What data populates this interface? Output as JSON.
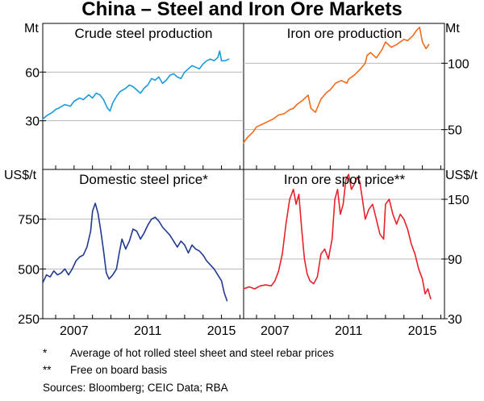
{
  "title": "China – Steel and Iron Ore Markets",
  "footnotes": {
    "note1_marker": "*",
    "note1_text": "Average of hot rolled steel sheet and steel rebar prices",
    "note2_marker": "**",
    "note2_text": "Free on board basis",
    "sources": "Sources:  Bloomberg; CEIC Data; RBA"
  },
  "units": {
    "top_left": "Mt",
    "top_right": "Mt",
    "bottom_left": "US$/t",
    "bottom_right": "US$/t"
  },
  "colors": {
    "crude_steel": "#1a9cd8",
    "iron_ore_production": "#f26a1b",
    "domestic_steel_price": "#203a8f",
    "iron_ore_spot": "#e8222b"
  },
  "chart_data": [
    {
      "type": "line",
      "title": "Crude steel production",
      "ylabel": "Mt",
      "yticks": [
        30,
        60
      ],
      "ylim": [
        0,
        90
      ],
      "xlim": [
        2005.3,
        2016.2
      ],
      "series": [
        {
          "name": "Crude steel production",
          "color": "#1a9cd8",
          "x": [
            2005.3,
            2005.5,
            2005.8,
            2006.0,
            2006.2,
            2006.5,
            2006.8,
            2007.0,
            2007.3,
            2007.5,
            2007.8,
            2008.0,
            2008.2,
            2008.4,
            2008.6,
            2008.8,
            2008.95,
            2009.1,
            2009.3,
            2009.5,
            2009.8,
            2010.0,
            2010.2,
            2010.4,
            2010.6,
            2010.8,
            2011.0,
            2011.2,
            2011.4,
            2011.6,
            2011.8,
            2012.0,
            2012.2,
            2012.4,
            2012.6,
            2012.8,
            2013.0,
            2013.2,
            2013.4,
            2013.6,
            2013.8,
            2014.0,
            2014.2,
            2014.4,
            2014.6,
            2014.8,
            2014.9,
            2015.0,
            2015.2,
            2015.4
          ],
          "y": [
            31,
            33,
            35,
            37,
            38,
            40,
            39,
            42,
            44,
            43,
            46,
            44,
            47,
            46,
            43,
            38,
            36,
            41,
            45,
            48,
            50,
            52,
            51,
            49,
            47,
            50,
            52,
            56,
            55,
            57,
            53,
            55,
            58,
            59,
            57,
            56,
            60,
            62,
            64,
            63,
            62,
            65,
            67,
            68,
            67,
            69,
            73,
            67,
            67,
            68
          ]
        }
      ]
    },
    {
      "type": "line",
      "title": "Iron ore production",
      "ylabel": "Mt",
      "yticks": [
        50,
        100
      ],
      "ylim": [
        20,
        130
      ],
      "xlim": [
        2005.3,
        2016.2
      ],
      "series": [
        {
          "name": "Iron ore production",
          "color": "#f26a1b",
          "x": [
            2005.3,
            2005.5,
            2005.8,
            2006.0,
            2006.3,
            2006.6,
            2006.9,
            2007.2,
            2007.5,
            2007.8,
            2008.0,
            2008.2,
            2008.5,
            2008.8,
            2008.95,
            2009.2,
            2009.5,
            2009.8,
            2010.0,
            2010.3,
            2010.6,
            2010.9,
            2011.0,
            2011.3,
            2011.6,
            2011.9,
            2012.0,
            2012.2,
            2012.5,
            2012.8,
            2013.0,
            2013.3,
            2013.6,
            2013.9,
            2014.0,
            2014.2,
            2014.5,
            2014.7,
            2014.85,
            2015.0,
            2015.2,
            2015.35
          ],
          "y": [
            40,
            44,
            48,
            52,
            54,
            56,
            58,
            61,
            62,
            65,
            66,
            69,
            72,
            76,
            66,
            63,
            73,
            78,
            80,
            85,
            87,
            85,
            88,
            91,
            95,
            100,
            106,
            108,
            104,
            110,
            116,
            112,
            114,
            117,
            118,
            117,
            121,
            125,
            127,
            116,
            111,
            114
          ]
        }
      ]
    },
    {
      "type": "line",
      "title": "Domestic steel price*",
      "ylabel": "US$/t",
      "yticks": [
        250,
        500,
        750
      ],
      "ylim": [
        250,
        1000
      ],
      "xlim": [
        2005.3,
        2016.2
      ],
      "xticks": [
        "2007",
        "2011",
        "2015"
      ],
      "series": [
        {
          "name": "Domestic steel price",
          "color": "#203a8f",
          "x": [
            2005.3,
            2005.5,
            2005.7,
            2005.9,
            2006.1,
            2006.3,
            2006.5,
            2006.7,
            2006.9,
            2007.1,
            2007.3,
            2007.5,
            2007.7,
            2007.9,
            2008.0,
            2008.15,
            2008.3,
            2008.45,
            2008.6,
            2008.75,
            2008.9,
            2009.1,
            2009.3,
            2009.45,
            2009.6,
            2009.8,
            2010.0,
            2010.2,
            2010.4,
            2010.6,
            2010.8,
            2011.0,
            2011.2,
            2011.4,
            2011.6,
            2011.8,
            2012.0,
            2012.2,
            2012.4,
            2012.6,
            2012.8,
            2013.0,
            2013.2,
            2013.4,
            2013.6,
            2013.8,
            2014.0,
            2014.2,
            2014.4,
            2014.6,
            2014.8,
            2015.0,
            2015.15,
            2015.3
          ],
          "y": [
            430,
            470,
            460,
            490,
            470,
            480,
            500,
            470,
            500,
            540,
            560,
            570,
            610,
            690,
            790,
            830,
            780,
            690,
            590,
            480,
            450,
            470,
            500,
            580,
            650,
            600,
            640,
            700,
            690,
            650,
            680,
            720,
            750,
            760,
            740,
            710,
            690,
            670,
            640,
            610,
            640,
            620,
            580,
            620,
            600,
            590,
            570,
            540,
            520,
            500,
            470,
            440,
            380,
            340
          ]
        }
      ]
    },
    {
      "type": "line",
      "title": "Iron ore spot price**",
      "ylabel": "US$/t",
      "yticks": [
        30,
        90,
        150
      ],
      "ylim": [
        30,
        180
      ],
      "xlim": [
        2005.3,
        2016.2
      ],
      "xticks": [
        "2007",
        "2011",
        "2015"
      ],
      "series": [
        {
          "name": "Iron ore spot price",
          "color": "#e8222b",
          "x": [
            2005.3,
            2005.6,
            2005.9,
            2006.2,
            2006.5,
            2006.8,
            2007.0,
            2007.2,
            2007.4,
            2007.6,
            2007.8,
            2008.0,
            2008.15,
            2008.3,
            2008.45,
            2008.6,
            2008.75,
            2008.9,
            2009.1,
            2009.3,
            2009.5,
            2009.7,
            2009.9,
            2010.1,
            2010.25,
            2010.4,
            2010.55,
            2010.7,
            2010.85,
            2011.0,
            2011.15,
            2011.3,
            2011.45,
            2011.6,
            2011.75,
            2011.9,
            2012.1,
            2012.3,
            2012.5,
            2012.7,
            2012.9,
            2013.0,
            2013.2,
            2013.4,
            2013.6,
            2013.8,
            2014.0,
            2014.2,
            2014.4,
            2014.6,
            2014.8,
            2015.0,
            2015.15,
            2015.3,
            2015.45
          ],
          "y": [
            60,
            62,
            60,
            63,
            64,
            63,
            68,
            78,
            95,
            125,
            150,
            160,
            145,
            155,
            120,
            90,
            75,
            68,
            65,
            72,
            95,
            100,
            90,
            110,
            150,
            160,
            135,
            145,
            170,
            175,
            160,
            165,
            172,
            168,
            150,
            130,
            140,
            145,
            130,
            115,
            110,
            145,
            150,
            135,
            125,
            135,
            130,
            120,
            105,
            95,
            80,
            70,
            55,
            60,
            50
          ]
        }
      ]
    }
  ]
}
